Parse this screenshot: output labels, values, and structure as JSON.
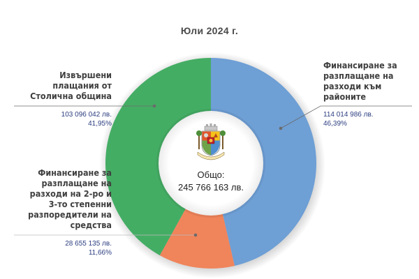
{
  "title": "Юли 2024 г.",
  "center": {
    "label": "Общо:",
    "total": "245 766 163 лв.",
    "emblem": "sofia-coat-of-arms-icon"
  },
  "colors": {
    "blue": "#6e9fd5",
    "orange": "#f0845b",
    "green": "#44ad64",
    "leader": "#6b6b6b",
    "value_text": "#2c3e80"
  },
  "segments": [
    {
      "label_lines": [
        "Финансиране за",
        "разплащане на",
        "разходи към",
        "районите"
      ],
      "amount": "114 014 986 лв.",
      "percent": "46,39%"
    },
    {
      "label_lines": [
        "Финансиране за",
        "разплащане на",
        "разходи на 2-ро и",
        "3-то степенни",
        "разпоредители на",
        "средства"
      ],
      "amount": "28 655 135 лв.",
      "percent": "11,66%"
    },
    {
      "label_lines": [
        "Извършени",
        "плащания от",
        "Столична община"
      ],
      "amount": "103 096 042 лв.",
      "percent": "41,95%"
    }
  ],
  "chart_data": {
    "type": "pie",
    "subtype": "donut",
    "title": "Юли 2024 г.",
    "center_label": "Общо: 245 766 163 лв.",
    "total": 245766163,
    "categories": [
      "Финансиране за разплащане на разходи към районите",
      "Финансиране за разплащане на разходи на 2-ро и 3-то степенни разпоредители на средства",
      "Извършени плащания от Столична община"
    ],
    "values": [
      114014986,
      28655135,
      103096042
    ],
    "percentages": [
      46.39,
      11.66,
      41.95
    ],
    "colors": [
      "#6e9fd5",
      "#f0845b",
      "#44ad64"
    ],
    "start_angle": "12 o'clock, clockwise",
    "legend": "none (leader-line labels)",
    "units": "лв."
  }
}
